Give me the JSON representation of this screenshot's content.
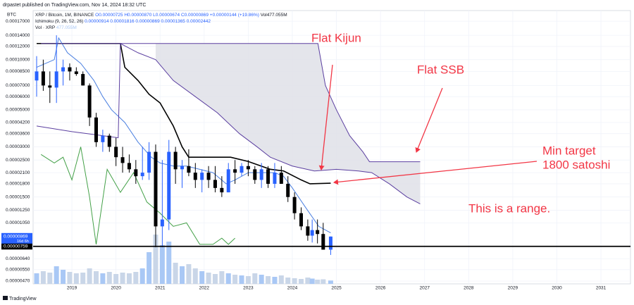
{
  "chart_data": {
    "type": "candlestick",
    "publisher": "drpastet published on TradingView.com, Nov 14, 2024 18:32 UTC",
    "currency": "BTC",
    "symbol": "XRP / Bitcoin, 1M, BINANCE",
    "ohlc_text": "O0.00000725 H0.00000870 L0.00000674 C0.00000869 +0.00000144 (+19.86%)",
    "volume_text": "Vol477.055M",
    "indicator_text": "Ichimoku (9, 26, 52, 26)",
    "indicator_values": "0.00000914 0.00001816 0.00000869 0.00001365 0.00002442",
    "volume_indicator": "Vol · XRP",
    "volume_indicator_value": "477.055M",
    "footer": "TradingView",
    "log_y": true,
    "grid": true,
    "xlim": [
      2018.12,
      2031.67
    ],
    "xticks": [
      2019,
      2020,
      2021,
      2022,
      2023,
      2024,
      2025,
      2026,
      2027,
      2028,
      2029,
      2030,
      2031
    ],
    "ylim": [
      4.52e-06,
      0.000197
    ],
    "yticks": [
      {
        "value": 0.00017,
        "label": "0.00017000"
      },
      {
        "value": 0.00014,
        "label": "0.00014000"
      },
      {
        "value": 0.00012,
        "label": "0.00012000"
      },
      {
        "value": 0.0001,
        "label": "0.00010000"
      },
      {
        "value": 8.5e-05,
        "label": "0.00008500"
      },
      {
        "value": 7e-05,
        "label": "0.00007000"
      },
      {
        "value": 6e-05,
        "label": "0.00006000"
      },
      {
        "value": 5e-05,
        "label": "0.00005000"
      },
      {
        "value": 4.2e-05,
        "label": "0.00004200"
      },
      {
        "value": 3.6e-05,
        "label": "0.00003600"
      },
      {
        "value": 3e-05,
        "label": "0.00003000"
      },
      {
        "value": 2.5e-05,
        "label": "0.00002500"
      },
      {
        "value": 2.1e-05,
        "label": "0.00002100"
      },
      {
        "value": 1.8e-05,
        "label": "0.00001800"
      },
      {
        "value": 1.5e-05,
        "label": "0.00001500"
      },
      {
        "value": 1.25e-05,
        "label": "0.00001250"
      },
      {
        "value": 1.05e-05,
        "label": "0.00001050"
      },
      {
        "value": 6.4e-06,
        "label": "0.00000640"
      },
      {
        "value": 5.5e-06,
        "label": "0.00000550"
      },
      {
        "value": 4.7e-06,
        "label": "0.00000470"
      }
    ],
    "hline": {
      "value": 7.59e-06,
      "label": "0.00000759",
      "color": "#000000"
    },
    "price_label": {
      "value": 8.69e-06,
      "label": "0.00000869",
      "countdown": "16d 6h",
      "color": "#2962ff"
    },
    "candles": {
      "up_color": "#2962ff",
      "down_color": "#000000",
      "volume_up_color": "#a9c8f5",
      "volume_down_color": "#c9d6e8",
      "x": [
        2018.2,
        2018.35,
        2018.5,
        2018.65,
        2018.8,
        2018.95,
        2019.1,
        2019.25,
        2019.4,
        2019.55,
        2019.7,
        2019.85,
        2020.0,
        2020.15,
        2020.3,
        2020.45,
        2020.6,
        2020.75,
        2020.9,
        2021.05,
        2021.2,
        2021.35,
        2021.5,
        2021.65,
        2021.8,
        2021.95,
        2022.1,
        2022.25,
        2022.4,
        2022.55,
        2022.7,
        2022.85,
        2023.0,
        2023.15,
        2023.3,
        2023.45,
        2023.6,
        2023.75,
        2023.9,
        2024.05,
        2024.2,
        2024.35,
        2024.45,
        2024.57,
        2024.7,
        2024.87
      ],
      "open": [
        7.5e-05,
        8.5e-05,
        7e-05,
        6.8e-05,
        8.5e-05,
        9e-05,
        8.5e-05,
        8.2e-05,
        7e-05,
        4.5e-05,
        3.2e-05,
        3.5e-05,
        3e-05,
        2.6e-05,
        2.4e-05,
        2.2e-05,
        2e-05,
        2.1e-05,
        2.8e-05,
        1e-05,
        1.1e-05,
        2.8e-05,
        2.2e-05,
        2.3e-05,
        2.1e-05,
        1.9e-05,
        2.1e-05,
        1.9e-05,
        1.7e-05,
        1.6e-05,
        2.2e-05,
        2.1e-05,
        2.3e-05,
        2.2e-05,
        1.9e-05,
        2.2e-05,
        1.8e-05,
        2.1e-05,
        1.8e-05,
        1.5e-05,
        1.2e-05,
        1e-05,
        8.8e-06,
        9.5e-06,
        9e-06,
        7.25e-06
      ],
      "high": [
        0.000105,
        0.0001,
        8.5e-05,
        0.00014,
        0.0001,
        9.5e-05,
        9e-05,
        8.5e-05,
        7.2e-05,
        4.8e-05,
        3.8e-05,
        3.6e-05,
        3.4e-05,
        3e-05,
        2.7e-05,
        2.5e-05,
        3e-05,
        3.2e-05,
        3.1e-05,
        2.5e-05,
        3.3e-05,
        3e-05,
        2.5e-05,
        2.9e-05,
        2.4e-05,
        2.2e-05,
        2.3e-05,
        2.3e-05,
        2e-05,
        2.4e-05,
        2.5e-05,
        2.4e-05,
        2.5e-05,
        2.3e-05,
        2.4e-05,
        2.3e-05,
        2.4e-05,
        2.3e-05,
        2e-05,
        1.6e-05,
        1.3e-05,
        1.1e-05,
        1.1e-05,
        1.1e-05,
        1.05e-05,
        8.7e-06
      ],
      "low": [
        6e-05,
        6.5e-05,
        5.5e-05,
        5.5e-05,
        7e-05,
        7.5e-05,
        8e-05,
        7e-05,
        4e-05,
        3e-05,
        2.8e-05,
        2.8e-05,
        2.3e-05,
        2.1e-05,
        2.1e-05,
        1.8e-05,
        1.9e-05,
        1.9e-05,
        7.5e-06,
        7.5e-06,
        9.5e-06,
        1.8e-05,
        1.7e-05,
        2e-05,
        1.7e-05,
        1.6e-05,
        1.7e-05,
        1.6e-05,
        1.5e-05,
        1.6e-05,
        1.8e-05,
        2e-05,
        2e-05,
        1.8e-05,
        1.7e-05,
        1.7e-05,
        1.7e-05,
        1.8e-05,
        1.4e-05,
        1.1e-05,
        9.5e-06,
        8.2e-06,
        8e-06,
        7.9e-06,
        7.8e-06,
        6.74e-06
      ],
      "close": [
        8.5e-05,
        7e-05,
        6.8e-05,
        8.5e-05,
        9e-05,
        8.5e-05,
        8.2e-05,
        7e-05,
        4.5e-05,
        3.2e-05,
        3.5e-05,
        3e-05,
        2.6e-05,
        2.4e-05,
        2.2e-05,
        2e-05,
        2.1e-05,
        2.8e-05,
        1e-05,
        1.1e-05,
        2.8e-05,
        2.2e-05,
        2.3e-05,
        2.1e-05,
        1.9e-05,
        2.1e-05,
        1.9e-05,
        1.7e-05,
        1.6e-05,
        2.2e-05,
        2.1e-05,
        2.3e-05,
        2.2e-05,
        1.9e-05,
        2.2e-05,
        1.8e-05,
        2.1e-05,
        1.8e-05,
        1.5e-05,
        1.2e-05,
        1e-05,
        8.8e-06,
        9.5e-06,
        9e-06,
        7.25e-06,
        8.69e-06
      ],
      "volume": [
        1500,
        1800,
        1600,
        2500,
        2000,
        1700,
        1500,
        1600,
        2200,
        1800,
        1500,
        1700,
        1400,
        1600,
        1500,
        1700,
        2200,
        4500,
        7000,
        5500,
        6000,
        3000,
        2500,
        2800,
        2200,
        1800,
        1600,
        1400,
        1800,
        1500,
        1300,
        1200,
        1100,
        1500,
        1300,
        1100,
        1000,
        1200,
        900,
        800,
        700,
        900,
        750,
        600,
        650,
        477.055
      ]
    },
    "cloud": {
      "color": "#dfe1e7",
      "upper": 3,
      "lower": 2
    },
    "lines": [
      {
        "color": "#000000",
        "width": 1.6,
        "x": [
          2018.2,
          2020.1,
          2020.2,
          2020.5,
          2020.75,
          2021.0,
          2021.3,
          2021.5,
          2021.65,
          2022.0,
          2022.6,
          2023.0,
          2023.5,
          2023.8,
          2024.2,
          2024.4,
          2024.87
        ],
        "values": [
          0.000125,
          0.000125,
          9e-05,
          7.5e-05,
          6.2e-05,
          5.5e-05,
          4e-05,
          3e-05,
          2.6e-05,
          2.6e-05,
          2.6e-05,
          2.45e-05,
          2.2e-05,
          2.15e-05,
          1.9e-05,
          1.8e-05,
          1.816e-05
        ]
      },
      {
        "color": "#4a7fe0",
        "width": 1,
        "x": [
          2018.2,
          2018.6,
          2018.7,
          2018.9,
          2019.2,
          2019.5,
          2019.7,
          2019.9,
          2020.2,
          2020.5,
          2020.8,
          2021.0,
          2021.3,
          2021.6,
          2021.9,
          2022.2,
          2022.5,
          2022.7,
          2023.0,
          2023.3,
          2023.6,
          2023.8,
          2024.0,
          2024.3,
          2024.6,
          2024.87
        ],
        "values": [
          9e-05,
          0.0001,
          0.000135,
          0.00011,
          9.5e-05,
          7.5e-05,
          6e-05,
          5e-05,
          4.2e-05,
          3.2e-05,
          2.6e-05,
          2.4e-05,
          2.3e-05,
          2.3e-05,
          2.2e-05,
          2.1e-05,
          1.8e-05,
          1.9e-05,
          2.1e-05,
          2.1e-05,
          2.1e-05,
          2e-05,
          1.7e-05,
          1.3e-05,
          1e-05,
          9.14e-06
        ]
      },
      {
        "color": "#5b3fa0",
        "width": 1,
        "x": [
          2020.9,
          2021.3,
          2021.8,
          2022.3,
          2022.8,
          2023.2,
          2023.5,
          2024.0,
          2024.5,
          2025.0,
          2025.5,
          2025.8,
          2026.2,
          2026.6,
          2026.9
        ],
        "values": [
          0.0001,
          7.5e-05,
          6e-05,
          4.8e-05,
          3.6e-05,
          3e-05,
          2.6e-05,
          2.3e-05,
          2.15e-05,
          2.2e-05,
          2.15e-05,
          2.1e-05,
          1.8e-05,
          1.5e-05,
          1.365e-05
        ]
      },
      {
        "color": "#5b3fa0",
        "width": 1,
        "x": [
          2018.3,
          2020.1,
          2024.58,
          2024.75,
          2025.0,
          2025.3,
          2025.6,
          2025.75,
          2026.9
        ],
        "values": [
          0.000125,
          0.000125,
          0.000125,
          7e-05,
          5e-05,
          3.5e-05,
          2.8e-05,
          2.442e-05,
          2.442e-05
        ]
      },
      {
        "color": "#5b3fa0",
        "width": 1,
        "x": [
          2018.2,
          2019.0,
          2019.7,
          2020.05,
          2020.1,
          2020.5,
          2020.9
        ],
        "values": [
          4e-05,
          3.7e-05,
          3.5e-05,
          3.4e-05,
          0.000125,
          0.00011,
          0.0001
        ]
      },
      {
        "color": "#43a047",
        "width": 1,
        "x": [
          2018.3,
          2018.6,
          2018.8,
          2019.0,
          2019.2,
          2019.4,
          2019.55,
          2019.8,
          2020.1,
          2020.4,
          2020.7,
          2021.0,
          2021.3,
          2021.6,
          2021.9,
          2022.2,
          2022.4,
          2022.55,
          2022.7
        ],
        "values": [
          2.7e-05,
          2.4e-05,
          2.6e-05,
          1.9e-05,
          3e-05,
          1.5e-05,
          7.8e-06,
          2.2e-05,
          1.6e-05,
          2.1e-05,
          1.4e-05,
          1.2e-05,
          1e-05,
          1.05e-05,
          7.8e-06,
          7.8e-06,
          8.5e-06,
          7.8e-06,
          8.5e-06
        ]
      }
    ],
    "annotation_color": "#f23645",
    "annotations": [
      {
        "text": "Flat Kijun"
      },
      {
        "text": "Flat SSB"
      },
      {
        "lines": [
          "Min target",
          "1800 satoshi"
        ]
      },
      {
        "text": "This is a range."
      }
    ]
  }
}
